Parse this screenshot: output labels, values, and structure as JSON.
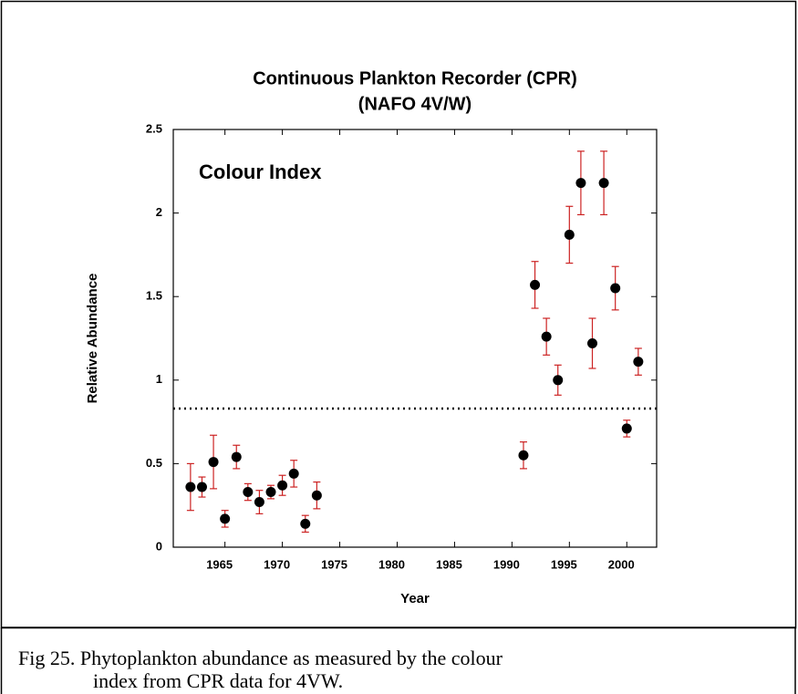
{
  "chart_data": {
    "type": "scatter",
    "title": "Continuous Plankton Recorder (CPR)",
    "subtitle": "(NAFO 4V/W)",
    "annotation": "Colour Index",
    "xlabel": "Year",
    "ylabel": "Relative Abundance",
    "x": [
      1962,
      1963,
      1964,
      1965,
      1966,
      1967,
      1968,
      1969,
      1970,
      1971,
      1972,
      1973,
      1991,
      1992,
      1993,
      1994,
      1995,
      1996,
      1997,
      1998,
      1999,
      2000,
      2001
    ],
    "values": [
      0.36,
      0.36,
      0.51,
      0.17,
      0.54,
      0.33,
      0.27,
      0.33,
      0.37,
      0.44,
      0.14,
      0.31,
      0.55,
      1.57,
      1.26,
      1.0,
      1.87,
      2.18,
      1.22,
      2.18,
      1.55,
      0.71,
      1.11
    ],
    "errors": [
      0.14,
      0.06,
      0.16,
      0.05,
      0.07,
      0.05,
      0.07,
      0.04,
      0.06,
      0.08,
      0.05,
      0.08,
      0.08,
      0.14,
      0.11,
      0.09,
      0.17,
      0.19,
      0.15,
      0.19,
      0.13,
      0.05,
      0.08
    ],
    "color": "#000000",
    "error_color": "#cc2222",
    "reference_line": 0.83,
    "xlim": [
      1960.5,
      2002.6
    ],
    "ylim": [
      0,
      2.5
    ],
    "xticks": [
      1965,
      1970,
      1975,
      1980,
      1985,
      1990,
      1995,
      2000
    ],
    "yticks": [
      0,
      0.5,
      1,
      1.5,
      2,
      2.5
    ],
    "grid": false
  },
  "caption": [
    "Fig 25.  Phytoplankton abundance as measured by the colour",
    "index from CPR data for 4VW."
  ]
}
